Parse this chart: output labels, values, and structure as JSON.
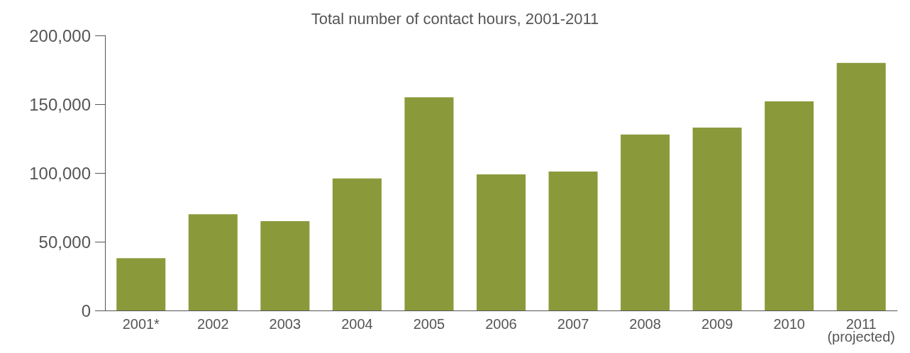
{
  "chart_data": {
    "type": "bar",
    "title": "Total number of contact hours, 2001-2011",
    "categories": [
      "2001*",
      "2002",
      "2003",
      "2004",
      "2005",
      "2006",
      "2007",
      "2008",
      "2009",
      "2010",
      "2011\n(projected)"
    ],
    "values": [
      38000,
      70000,
      65000,
      96000,
      155000,
      99000,
      101000,
      128000,
      133000,
      152000,
      180000
    ],
    "color": "#8a9a3b",
    "ylim": [
      0,
      200000
    ],
    "yticks": [
      0,
      {
        "value": 50000,
        "label": "50,000"
      },
      {
        "value": 100000,
        "label": "100,000"
      },
      {
        "value": 150000,
        "label": "150,000"
      },
      {
        "value": 200000,
        "label": "200,000"
      }
    ],
    "grid": false
  }
}
